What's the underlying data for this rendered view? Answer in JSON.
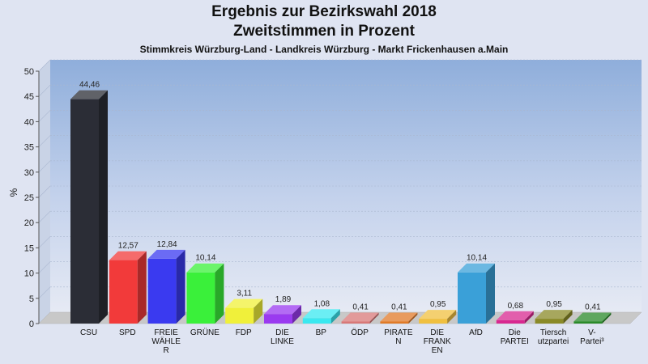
{
  "title": "Ergebnis zur Bezirkswahl 2018",
  "subtitle": "Zweitstimmen in Prozent",
  "subtitle2": "Stimmkreis Würzburg-Land - Landkreis Würzburg - Markt Frickenhausen a.Main",
  "chart_data": {
    "type": "bar",
    "title": "Ergebnis zur Bezirkswahl 2018",
    "subtitle": "Zweitstimmen in Prozent",
    "ylabel": "%",
    "xlabel": "",
    "ylim": [
      0,
      50
    ],
    "yticks": [
      0,
      5,
      10,
      15,
      20,
      25,
      30,
      35,
      40,
      45,
      50
    ],
    "grid": true,
    "categories": [
      "CSU",
      "SPD",
      "FREIE WÄHLER",
      "GRÜNE",
      "FDP",
      "DIE LINKE",
      "BP",
      "ÖDP",
      "PIRATEN",
      "DIE FRANKEN",
      "AfD",
      "Die PARTEI",
      "Tierschutzpartei",
      "V-Partei³"
    ],
    "category_labels": [
      [
        "CSU"
      ],
      [
        "SPD"
      ],
      [
        "FREIE",
        "WÄHLE",
        "R"
      ],
      [
        "GRÜNE"
      ],
      [
        "FDP"
      ],
      [
        "DIE",
        "LINKE"
      ],
      [
        "BP"
      ],
      [
        "ÖDP"
      ],
      [
        "PIRATE",
        "N"
      ],
      [
        "DIE",
        "FRANK",
        "EN"
      ],
      [
        "AfD"
      ],
      [
        "Die",
        "PARTEI"
      ],
      [
        "Tiersch",
        "utzpartei"
      ],
      [
        "V-",
        "Partei³"
      ]
    ],
    "values": [
      44.46,
      12.57,
      12.84,
      10.14,
      3.11,
      1.89,
      1.08,
      0.41,
      0.41,
      0.95,
      10.14,
      0.68,
      0.95,
      0.41
    ],
    "value_labels": [
      "44,46",
      "12,57",
      "12,84",
      "10,14",
      "3,11",
      "1,89",
      "1,08",
      "0,41",
      "0,41",
      "0,95",
      "10,14",
      "0,68",
      "0,95",
      "0,41"
    ],
    "colors": [
      "#2b2d36",
      "#f23a3a",
      "#3a3af0",
      "#3af03a",
      "#f0f03a",
      "#9a3af0",
      "#3ae8f0",
      "#d87878",
      "#e07a28",
      "#f0c040",
      "#3aa0d8",
      "#d82890",
      "#8a8a28",
      "#2a8a2a"
    ]
  }
}
